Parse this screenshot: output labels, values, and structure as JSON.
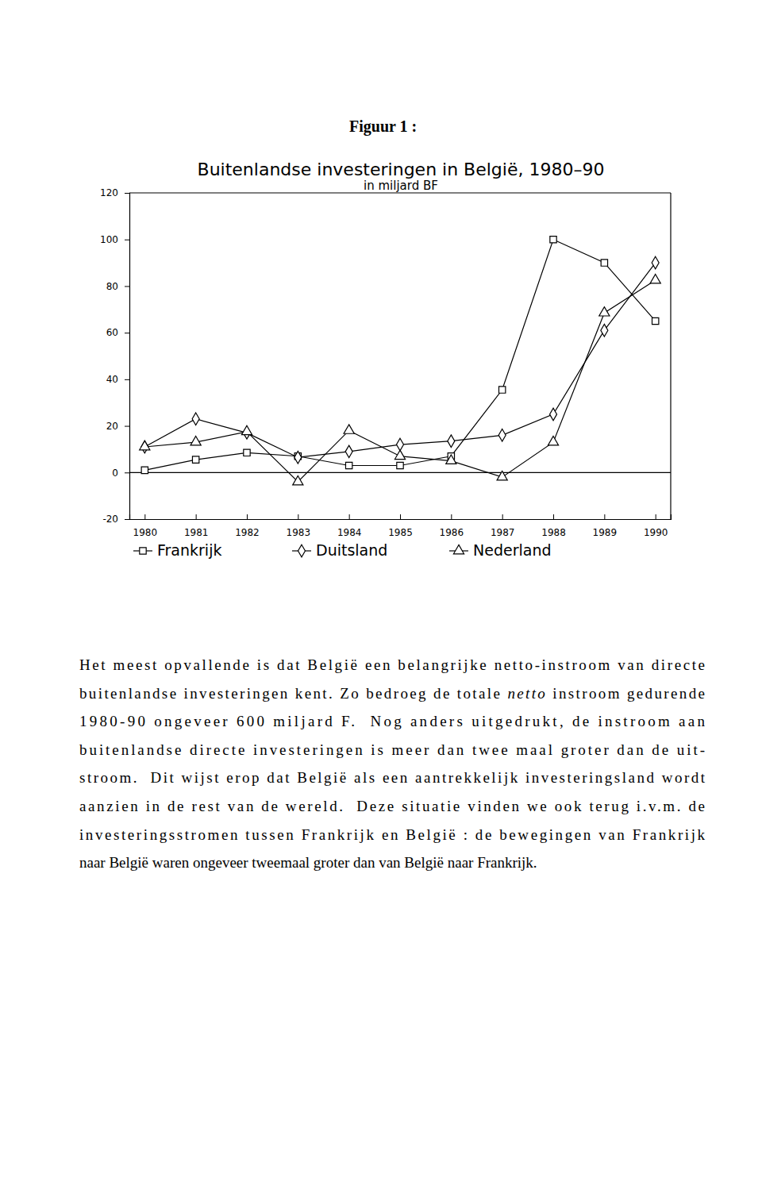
{
  "figure_label": "Figuur 1 :",
  "chart_data": {
    "type": "line",
    "title": "Buitenlandse investeringen in België, 1980–90",
    "subtitle": "in miljard BF",
    "x": [
      1980,
      1981,
      1982,
      1983,
      1984,
      1985,
      1986,
      1987,
      1988,
      1989,
      1990
    ],
    "series": [
      {
        "name": "Frankrijk",
        "color": "#000000",
        "marker": "square",
        "values": [
          1,
          5.5,
          8.5,
          7,
          3,
          3,
          7,
          35.5,
          100,
          90,
          65
        ]
      },
      {
        "name": "Duitsland",
        "color": "#000000",
        "marker": "diamond",
        "values": [
          11,
          23,
          17,
          6.5,
          9,
          12,
          13.5,
          16,
          25,
          61,
          90
        ]
      },
      {
        "name": "Nederland",
        "color": "#000000",
        "marker": "triangle",
        "values": [
          11,
          13,
          17.5,
          -4,
          18,
          7,
          5,
          -2,
          13,
          68.5,
          82.5
        ]
      }
    ],
    "xlim": [
      1979.7,
      1990.3
    ],
    "xticks": [
      1980,
      1981,
      1982,
      1983,
      1984,
      1985,
      1986,
      1987,
      1988,
      1989,
      1990
    ],
    "ylim": [
      -20,
      120
    ],
    "yticks": [
      -20,
      0,
      20,
      40,
      60,
      80,
      100,
      120
    ],
    "legend": "bottom"
  },
  "text_lines": [
    [
      {
        "text": "Het meest opvallende is dat België een belangrijke netto-instroom van directe"
      }
    ],
    [
      {
        "text": "buitenlandse investeringen kent. Zo bedroeg de totale "
      },
      {
        "text": "netto",
        "emphasis": true
      },
      {
        "text": " instroom gedurende"
      }
    ],
    [
      {
        "text": "1980-90 ongeveer 600 miljard F.  Nog anders uitgedrukt, de instroom aan"
      }
    ],
    [
      {
        "text": "buitenlandse directe investeringen is meer dan twee maal groter dan de uit-"
      }
    ],
    [
      {
        "text": "stroom.  Dit wijst erop dat België als een aantrekkelijk investeringsland wordt"
      }
    ],
    [
      {
        "text": "aanzien in de rest van de wereld.  Deze situatie vinden we ook terug i.v.m. de"
      }
    ],
    [
      {
        "text": "investeringsstromen tussen Frankrijk en België : de bewegingen van Frankrijk"
      }
    ],
    [
      {
        "text": "naar België waren ongeveer tweemaal groter dan van België naar Frankrijk."
      }
    ]
  ]
}
